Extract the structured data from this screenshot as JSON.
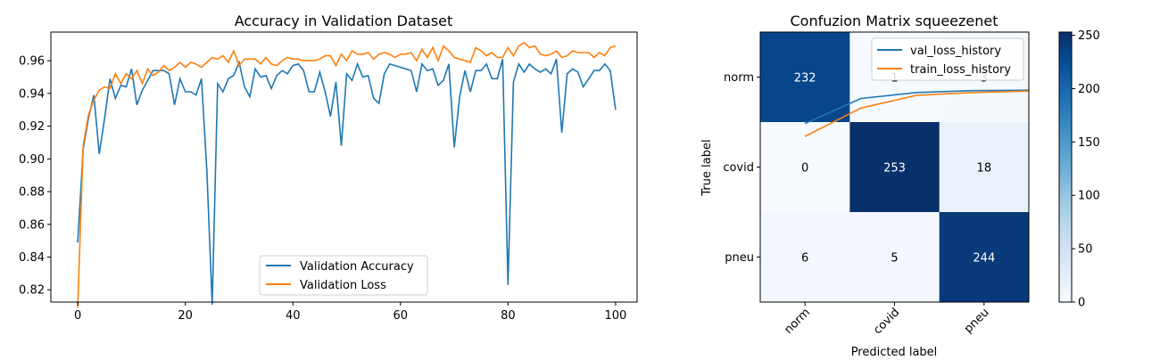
{
  "chart_data": [
    {
      "type": "line",
      "title": "Accuracy in Validation Dataset",
      "xlabel": "",
      "ylabel": "",
      "xlim": [
        -5,
        104
      ],
      "ylim": [
        0.8125,
        0.9775
      ],
      "xticks": [
        0,
        20,
        40,
        60,
        80,
        100
      ],
      "xtick_labels": [
        "0",
        "20",
        "40",
        "60",
        "80",
        "100"
      ],
      "yticks": [
        0.82,
        0.84,
        0.86,
        0.88,
        0.9,
        0.92,
        0.94,
        0.96
      ],
      "ytick_labels": [
        "0.82",
        "0.84",
        "0.86",
        "0.88",
        "0.90",
        "0.92",
        "0.94",
        "0.96"
      ],
      "grid": false,
      "legend_position": "lower center",
      "series": [
        {
          "name": "Validation Accuracy",
          "color": "#1f77b4",
          "values": [
            0.849,
            0.906,
            0.925,
            0.939,
            0.903,
            0.925,
            0.949,
            0.937,
            0.945,
            0.944,
            0.955,
            0.933,
            0.942,
            0.948,
            0.954,
            0.954,
            0.954,
            0.952,
            0.933,
            0.949,
            0.941,
            0.941,
            0.939,
            0.949,
            0.893,
            0.811,
            0.946,
            0.941,
            0.949,
            0.951,
            0.959,
            0.944,
            0.938,
            0.955,
            0.95,
            0.951,
            0.943,
            0.951,
            0.954,
            0.952,
            0.957,
            0.958,
            0.954,
            0.941,
            0.941,
            0.953,
            0.941,
            0.926,
            0.947,
            0.908,
            0.952,
            0.948,
            0.958,
            0.95,
            0.951,
            0.937,
            0.934,
            0.952,
            0.958,
            0.957,
            0.956,
            0.955,
            0.954,
            0.941,
            0.958,
            0.954,
            0.955,
            0.945,
            0.948,
            0.958,
            0.907,
            0.938,
            0.954,
            0.941,
            0.954,
            0.954,
            0.958,
            0.949,
            0.949,
            0.961,
            0.823,
            0.947,
            0.958,
            0.953,
            0.958,
            0.955,
            0.953,
            0.955,
            0.952,
            0.961,
            0.916,
            0.952,
            0.955,
            0.953,
            0.944,
            0.949,
            0.954,
            0.954,
            0.958,
            0.954,
            0.93
          ]
        },
        {
          "name": "Validation Loss",
          "color": "#ff7f0e",
          "values": [
            0.809,
            0.908,
            0.927,
            0.936,
            0.942,
            0.944,
            0.943,
            0.952,
            0.946,
            0.952,
            0.949,
            0.954,
            0.946,
            0.955,
            0.951,
            0.953,
            0.957,
            0.954,
            0.956,
            0.959,
            0.956,
            0.959,
            0.958,
            0.956,
            0.959,
            0.962,
            0.961,
            0.963,
            0.959,
            0.966,
            0.957,
            0.961,
            0.961,
            0.961,
            0.958,
            0.962,
            0.958,
            0.957,
            0.96,
            0.962,
            0.961,
            0.961,
            0.96,
            0.96,
            0.96,
            0.961,
            0.963,
            0.963,
            0.957,
            0.964,
            0.96,
            0.966,
            0.964,
            0.964,
            0.965,
            0.961,
            0.964,
            0.965,
            0.964,
            0.962,
            0.964,
            0.964,
            0.965,
            0.96,
            0.967,
            0.962,
            0.968,
            0.96,
            0.969,
            0.966,
            0.962,
            0.961,
            0.96,
            0.959,
            0.968,
            0.966,
            0.963,
            0.965,
            0.962,
            0.962,
            0.968,
            0.963,
            0.969,
            0.971,
            0.968,
            0.969,
            0.964,
            0.963,
            0.964,
            0.966,
            0.962,
            0.963,
            0.966,
            0.965,
            0.965,
            0.965,
            0.962,
            0.965,
            0.963,
            0.968,
            0.969
          ]
        }
      ]
    },
    {
      "type": "heatmap",
      "title": "Confuzion Matrix squeezenet",
      "xlabel": "Predicted label",
      "ylabel": "True label",
      "x_categories": [
        "norm",
        "covid",
        "pneu"
      ],
      "y_categories": [
        "norm",
        "covid",
        "pneu"
      ],
      "values": [
        [
          232,
          1,
          3
        ],
        [
          0,
          253,
          18
        ],
        [
          6,
          5,
          244
        ]
      ],
      "colormap": "Blues",
      "vmin": 0,
      "vmax": 253,
      "colorbar_ticks": [
        0,
        50,
        100,
        150,
        200,
        250
      ],
      "colorbar_tick_labels": [
        "0",
        "50",
        "100",
        "150",
        "200",
        "250"
      ],
      "legend_position": "top-right",
      "overlay_series": [
        {
          "name": "val_loss_history",
          "color": "#1f77b4",
          "x": [
            0,
            1,
            2,
            3,
            4
          ],
          "y": [
            0.89,
            0.945,
            0.958,
            0.962,
            0.963
          ]
        },
        {
          "name": "train_loss_history",
          "color": "#ff7f0e",
          "x": [
            0,
            1,
            2,
            3,
            4
          ],
          "y": [
            0.862,
            0.924,
            0.952,
            0.958,
            0.961
          ]
        }
      ],
      "overlay_ylim": [
        0.5,
        1.09
      ]
    }
  ]
}
